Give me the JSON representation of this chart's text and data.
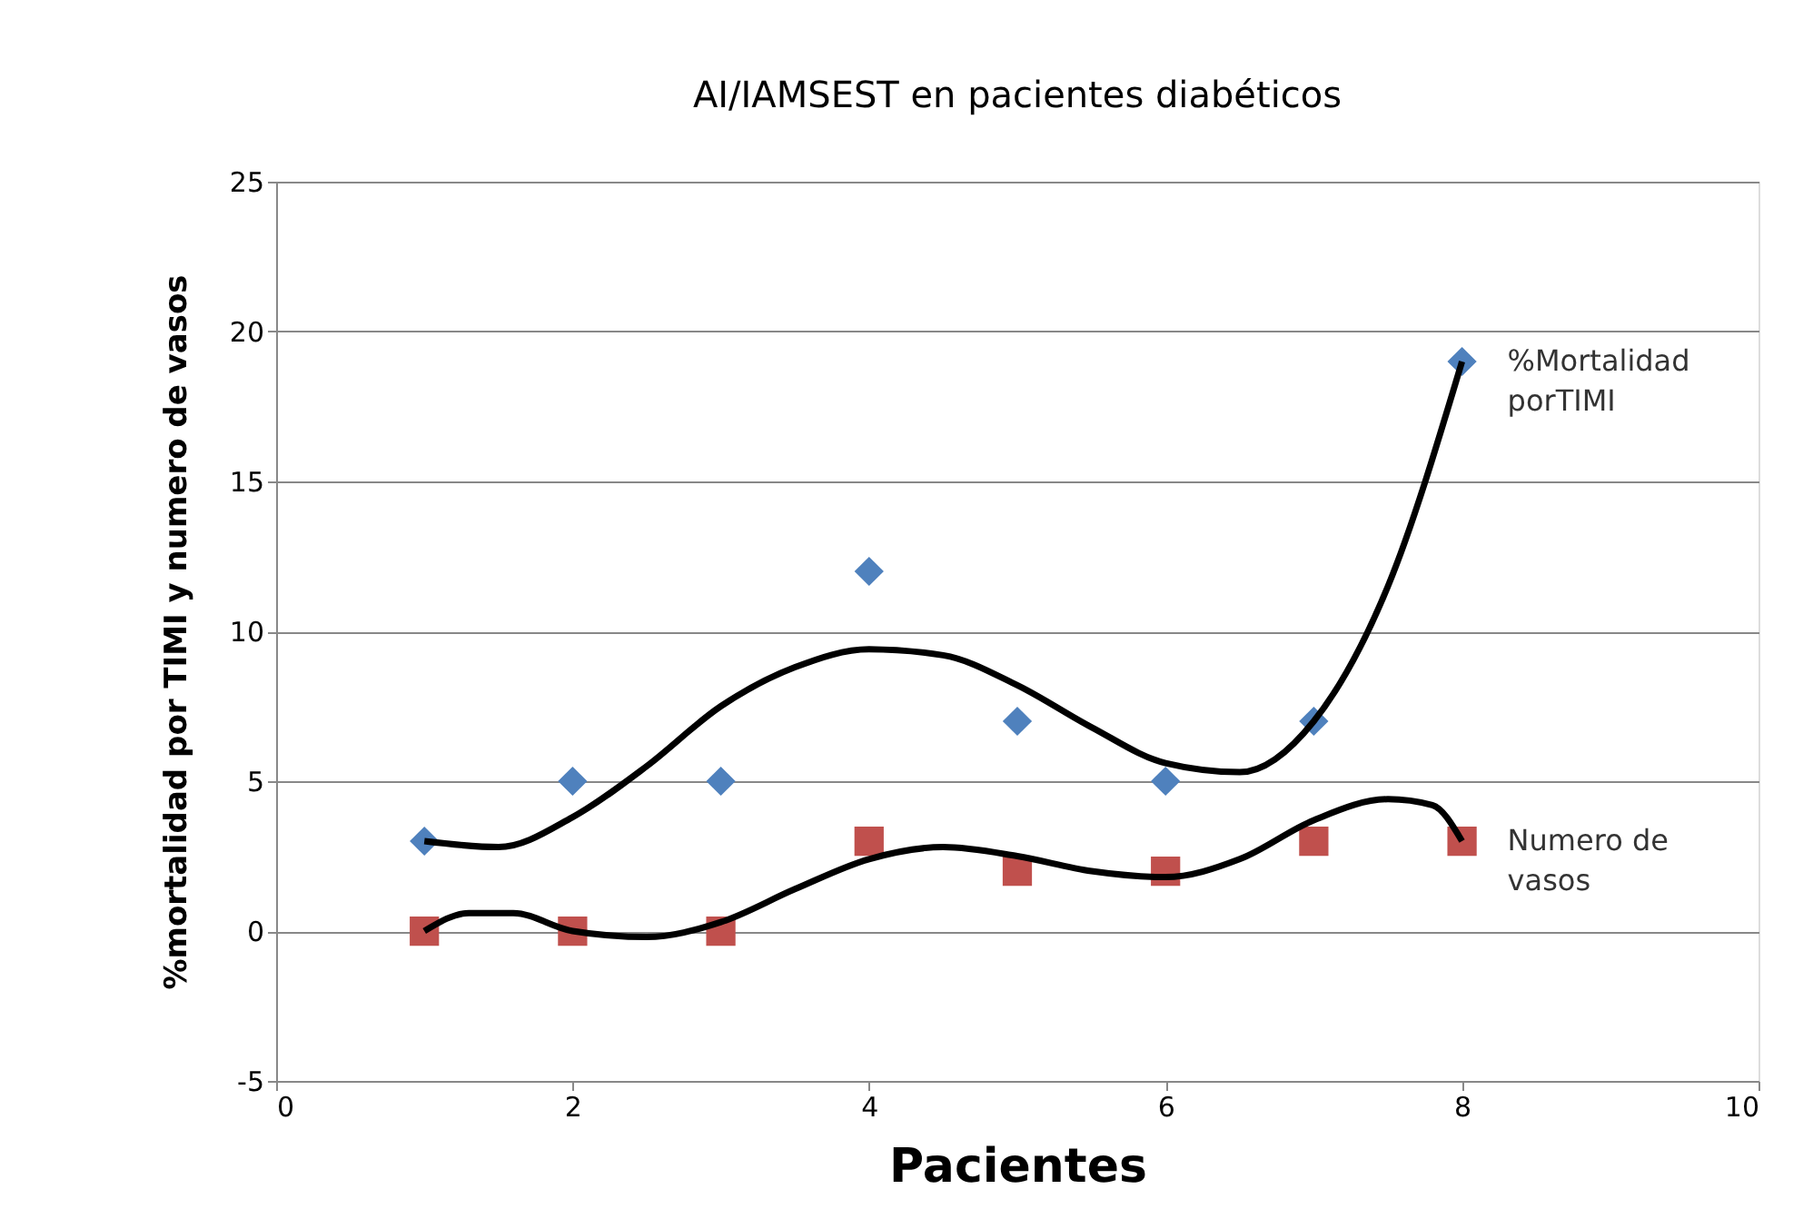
{
  "chart_data": {
    "type": "scatter",
    "title": "AI/IAMSEST en pacientes diabéticos",
    "xlabel": "Pacientes",
    "ylabel": "%mortalidad por TIMI y numero de vasos",
    "x": [
      1,
      2,
      3,
      4,
      5,
      6,
      7,
      8
    ],
    "series": [
      {
        "name": "%Mortalidad porTIMI",
        "color": "#4f81bd",
        "marker": "diamond",
        "values": [
          3,
          5,
          5,
          12,
          7,
          5,
          7,
          19
        ]
      },
      {
        "name": "Numero de vasos",
        "color": "#c0504d",
        "marker": "square",
        "values": [
          0,
          0,
          0,
          3,
          2,
          2,
          3,
          3
        ]
      },
      {
        "type": "line",
        "color": "#000000",
        "line_style": "solid",
        "x": [
          1,
          1.5,
          2,
          2.5,
          3,
          3.5,
          4,
          4.5,
          5,
          5.5,
          6,
          6.5,
          7,
          7.5,
          8
        ],
        "values": [
          3,
          2.8,
          3.8,
          5.5,
          7.5,
          8.8,
          9.4,
          9.2,
          8.2,
          6.8,
          5.6,
          5.3,
          7,
          11.5,
          19
        ]
      },
      {
        "type": "line",
        "color": "#000000",
        "line_style": "solid",
        "x": [
          1,
          1.3,
          1.6,
          2,
          2.5,
          3,
          3.5,
          4,
          4.5,
          5,
          5.5,
          6,
          6.5,
          7,
          7.5,
          7.8,
          8
        ],
        "values": [
          0,
          0.6,
          0.6,
          0,
          -0.2,
          0.3,
          1.4,
          2.4,
          2.8,
          2.5,
          2,
          1.8,
          2.4,
          3.7,
          4.4,
          4.2,
          3
        ]
      }
    ],
    "xlim": [
      0,
      10
    ],
    "xticks": [
      0,
      2,
      4,
      6,
      8,
      10
    ],
    "ylim": [
      -5,
      25
    ],
    "yticks": [
      -5,
      0,
      5,
      10,
      15,
      20,
      25
    ],
    "grid": "y",
    "legend": false
  }
}
